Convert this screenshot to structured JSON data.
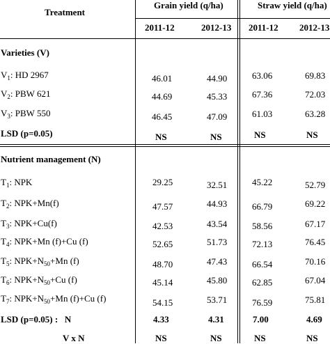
{
  "header": {
    "treatment": "Treatment",
    "grain_yield": "Grain yield (q/ha)",
    "straw_yield": "Straw yield (q/ha)",
    "years": [
      "2011-12",
      "2012-13",
      "2011-12",
      "2012-13"
    ]
  },
  "varieties": {
    "heading": "Varieties (V)",
    "rows": [
      {
        "sym": "V",
        "sub": "1",
        "name": ": HD 2967",
        "values": [
          "46.01",
          "44.90",
          "63.06",
          "69.83"
        ]
      },
      {
        "sym": "V",
        "sub": "2",
        "name": ": PBW 621",
        "values": [
          "44.69",
          "45.33",
          "67.36",
          "72.03"
        ]
      },
      {
        "sym": "V",
        "sub": "3",
        "name": ": PBW 550",
        "values": [
          "46.45",
          "47.09",
          "61.03",
          "63.28"
        ]
      }
    ],
    "lsd": {
      "label": "LSD (p=0.05)",
      "values": [
        "NS",
        "NS",
        "NS",
        "NS"
      ]
    }
  },
  "nutrient": {
    "heading": "Nutrient management (N)",
    "rows": [
      {
        "sym": "T",
        "sub": "1",
        "name": ": NPK",
        "values": [
          "29.25",
          "32.51",
          "45.22",
          "52.79"
        ]
      },
      {
        "sym": "T",
        "sub": "2",
        "name": ": NPK+Mn(f)",
        "values": [
          "47.57",
          "44.93",
          "66.79",
          "69.22"
        ]
      },
      {
        "sym": "T",
        "sub": "3",
        "name": ": NPK+Cu(f)",
        "values": [
          "42.53",
          "43.54",
          "58.56",
          "67.17"
        ]
      },
      {
        "sym": "T",
        "sub": "4",
        "name": ": NPK+Mn (f)+Cu (f)",
        "values": [
          "52.65",
          "51.73",
          "72.13",
          "76.45"
        ]
      },
      {
        "sym": "T",
        "sub": "5",
        "name_a": ": NPK+N",
        "name_sub": "50",
        "name_b": "+Mn (f)",
        "values": [
          "48.70",
          "47.43",
          "66.54",
          "70.16"
        ]
      },
      {
        "sym": "T",
        "sub": "6",
        "name_a": ": NPK+N",
        "name_sub": "50",
        "name_b": "+Cu (f)",
        "values": [
          "45.14",
          "45.80",
          "62.85",
          "67.04"
        ]
      },
      {
        "sym": "T",
        "sub": "7",
        "name_a": ": NPK+N",
        "name_sub": "50",
        "name_b": "+Mn (f)+Cu (f)",
        "values": [
          "54.15",
          "53.71",
          "76.59",
          "75.81"
        ]
      }
    ],
    "lsd": {
      "label": "LSD (p=0.05) :   N",
      "values": [
        "4.33",
        "4.31",
        "7.00",
        "4.69"
      ]
    }
  },
  "interaction": {
    "label": "V x N",
    "values": [
      "NS",
      "NS",
      "NS",
      "NS"
    ]
  }
}
